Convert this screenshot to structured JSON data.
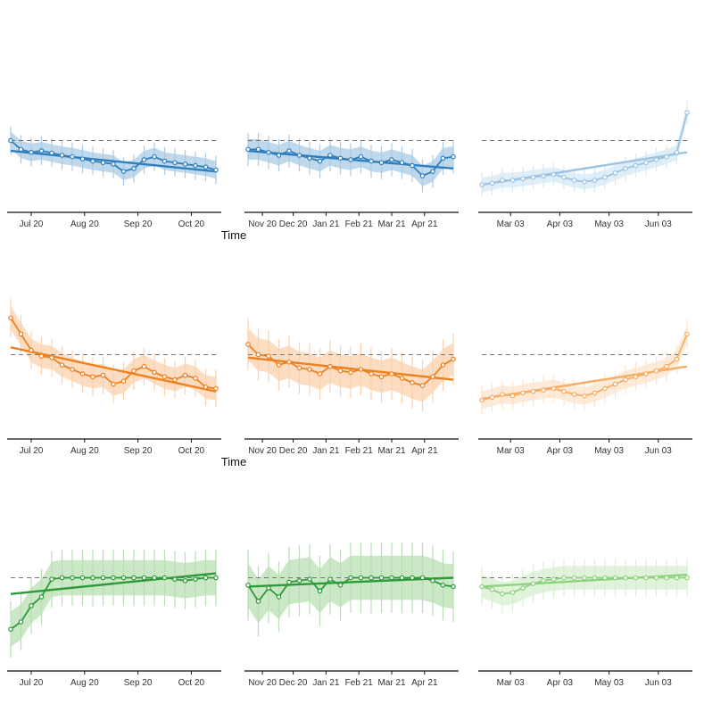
{
  "chart_data": {
    "type": "line",
    "title": "",
    "grid": false,
    "legend": "none",
    "reference_line_y": 1,
    "ylim": [
      0,
      2
    ],
    "xlabel_rows": [
      "Time",
      "Time",
      ""
    ],
    "colors": {
      "row1": {
        "line": "#2f7fbf",
        "band": "#a9cbe6",
        "light_line": "#9dc3e2",
        "light_band": "#d6e8f5"
      },
      "row2": {
        "line": "#f07f1e",
        "band": "#fbd2ad",
        "light_line": "#f6ad66",
        "light_band": "#fde3cb"
      },
      "row3": {
        "line": "#2e9a3a",
        "band": "#b8dfb3",
        "light_line": "#8fd37f",
        "light_band": "#d8efd2"
      },
      "dashed": "#777777",
      "axis": "#111111"
    },
    "column_ticks": [
      [
        "Jul 20",
        "Aug 20",
        "Sep 20",
        "Oct 20"
      ],
      [
        "Nov 20",
        "Dec 20",
        "Jan 21",
        "Feb 21",
        "Mar 21",
        "Apr 21"
      ],
      [
        "Mar 03",
        "Apr 03",
        "May 03",
        "Jun 03"
      ]
    ],
    "panels": [
      {
        "row": 0,
        "col": 0,
        "x": [
          0,
          0.05,
          0.1,
          0.15,
          0.2,
          0.25,
          0.3,
          0.35,
          0.4,
          0.45,
          0.5,
          0.55,
          0.6,
          0.65,
          0.7,
          0.75,
          0.8,
          0.85,
          0.9,
          0.95,
          1
        ],
        "y": [
          1.0,
          0.88,
          0.84,
          0.86,
          0.83,
          0.8,
          0.78,
          0.75,
          0.72,
          0.7,
          0.68,
          0.58,
          0.62,
          0.74,
          0.78,
          0.72,
          0.7,
          0.68,
          0.66,
          0.64,
          0.6
        ],
        "band": 0.12,
        "trend": [
          0.86,
          0.58
        ]
      },
      {
        "row": 0,
        "col": 1,
        "x": [
          0,
          0.05,
          0.1,
          0.15,
          0.2,
          0.25,
          0.3,
          0.35,
          0.4,
          0.45,
          0.5,
          0.55,
          0.6,
          0.65,
          0.7,
          0.75,
          0.8,
          0.85,
          0.9,
          0.95,
          1
        ],
        "y": [
          0.88,
          0.88,
          0.84,
          0.8,
          0.86,
          0.8,
          0.76,
          0.72,
          0.8,
          0.76,
          0.74,
          0.78,
          0.72,
          0.7,
          0.74,
          0.7,
          0.66,
          0.52,
          0.58,
          0.76,
          0.78
        ],
        "band": 0.14,
        "trend": [
          0.86,
          0.62
        ]
      },
      {
        "row": 0,
        "col": 2,
        "x": [
          0,
          0.05,
          0.1,
          0.15,
          0.2,
          0.25,
          0.3,
          0.35,
          0.4,
          0.45,
          0.5,
          0.55,
          0.6,
          0.65,
          0.7,
          0.75,
          0.8,
          0.85,
          0.9,
          0.95,
          1
        ],
        "y": [
          0.4,
          0.42,
          0.46,
          0.46,
          0.48,
          0.5,
          0.52,
          0.54,
          0.5,
          0.46,
          0.44,
          0.46,
          0.5,
          0.56,
          0.62,
          0.66,
          0.7,
          0.74,
          0.78,
          0.84,
          1.38
        ],
        "band": 0.1,
        "trend": [
          0.4,
          0.84
        ]
      },
      {
        "row": 1,
        "col": 0,
        "x": [
          0,
          0.05,
          0.1,
          0.15,
          0.2,
          0.25,
          0.3,
          0.35,
          0.4,
          0.45,
          0.5,
          0.55,
          0.6,
          0.65,
          0.7,
          0.75,
          0.8,
          0.85,
          0.9,
          0.95,
          1
        ],
        "y": [
          1.5,
          1.28,
          1.06,
          0.98,
          0.96,
          0.86,
          0.8,
          0.74,
          0.7,
          0.72,
          0.6,
          0.64,
          0.78,
          0.84,
          0.76,
          0.7,
          0.66,
          0.72,
          0.68,
          0.56,
          0.54
        ],
        "band": 0.16,
        "trend": [
          1.1,
          0.5
        ]
      },
      {
        "row": 1,
        "col": 1,
        "x": [
          0,
          0.05,
          0.1,
          0.15,
          0.2,
          0.25,
          0.3,
          0.35,
          0.4,
          0.45,
          0.5,
          0.55,
          0.6,
          0.65,
          0.7,
          0.75,
          0.8,
          0.85,
          0.9,
          0.95,
          1
        ],
        "y": [
          1.14,
          1.0,
          0.98,
          0.86,
          0.9,
          0.82,
          0.8,
          0.74,
          0.84,
          0.78,
          0.76,
          0.8,
          0.74,
          0.7,
          0.74,
          0.68,
          0.62,
          0.58,
          0.7,
          0.86,
          0.94
        ],
        "band": 0.22,
        "trend": [
          0.96,
          0.66
        ]
      },
      {
        "row": 1,
        "col": 2,
        "x": [
          0,
          0.05,
          0.1,
          0.15,
          0.2,
          0.25,
          0.3,
          0.35,
          0.4,
          0.45,
          0.5,
          0.55,
          0.6,
          0.65,
          0.7,
          0.75,
          0.8,
          0.85,
          0.9,
          0.95,
          1
        ],
        "y": [
          0.38,
          0.42,
          0.46,
          0.44,
          0.48,
          0.5,
          0.52,
          0.54,
          0.5,
          0.46,
          0.44,
          0.48,
          0.54,
          0.6,
          0.66,
          0.7,
          0.74,
          0.78,
          0.84,
          0.94,
          1.28
        ],
        "band": 0.12,
        "trend": [
          0.4,
          0.84
        ]
      },
      {
        "row": 2,
        "col": 0,
        "x": [
          0,
          0.05,
          0.1,
          0.15,
          0.2,
          0.25,
          0.3,
          0.35,
          0.4,
          0.45,
          0.5,
          0.55,
          0.6,
          0.65,
          0.7,
          0.75,
          0.8,
          0.85,
          0.9,
          0.95,
          1
        ],
        "y": [
          0.3,
          0.4,
          0.62,
          0.74,
          0.98,
          1.0,
          1.0,
          1.0,
          1.0,
          1.0,
          1.0,
          1.0,
          1.0,
          1.0,
          1.0,
          1.0,
          0.98,
          0.96,
          0.98,
          1.0,
          1.0
        ],
        "band": 0.24,
        "trend": [
          0.78,
          1.06
        ]
      },
      {
        "row": 2,
        "col": 1,
        "x": [
          0,
          0.05,
          0.1,
          0.15,
          0.2,
          0.25,
          0.3,
          0.35,
          0.4,
          0.45,
          0.5,
          0.55,
          0.6,
          0.65,
          0.7,
          0.75,
          0.8,
          0.85,
          0.9,
          0.95,
          1
        ],
        "y": [
          0.9,
          0.68,
          0.86,
          0.74,
          0.94,
          0.96,
          0.98,
          0.82,
          0.98,
          0.9,
          1.0,
          1.0,
          1.0,
          1.0,
          1.0,
          1.0,
          1.0,
          1.0,
          0.96,
          0.9,
          0.88
        ],
        "band": 0.3,
        "trend": [
          0.88,
          1.0
        ]
      },
      {
        "row": 2,
        "col": 2,
        "x": [
          0,
          0.05,
          0.1,
          0.15,
          0.2,
          0.25,
          0.3,
          0.35,
          0.4,
          0.45,
          0.5,
          0.55,
          0.6,
          0.65,
          0.7,
          0.75,
          0.8,
          0.85,
          0.9,
          0.95,
          1
        ],
        "y": [
          0.88,
          0.84,
          0.78,
          0.8,
          0.86,
          0.92,
          0.96,
          0.98,
          1.0,
          1.0,
          1.0,
          1.0,
          1.0,
          1.0,
          1.0,
          1.0,
          1.0,
          1.0,
          1.0,
          1.0,
          1.0
        ],
        "band": 0.16,
        "trend": [
          0.88,
          1.04
        ]
      }
    ]
  }
}
